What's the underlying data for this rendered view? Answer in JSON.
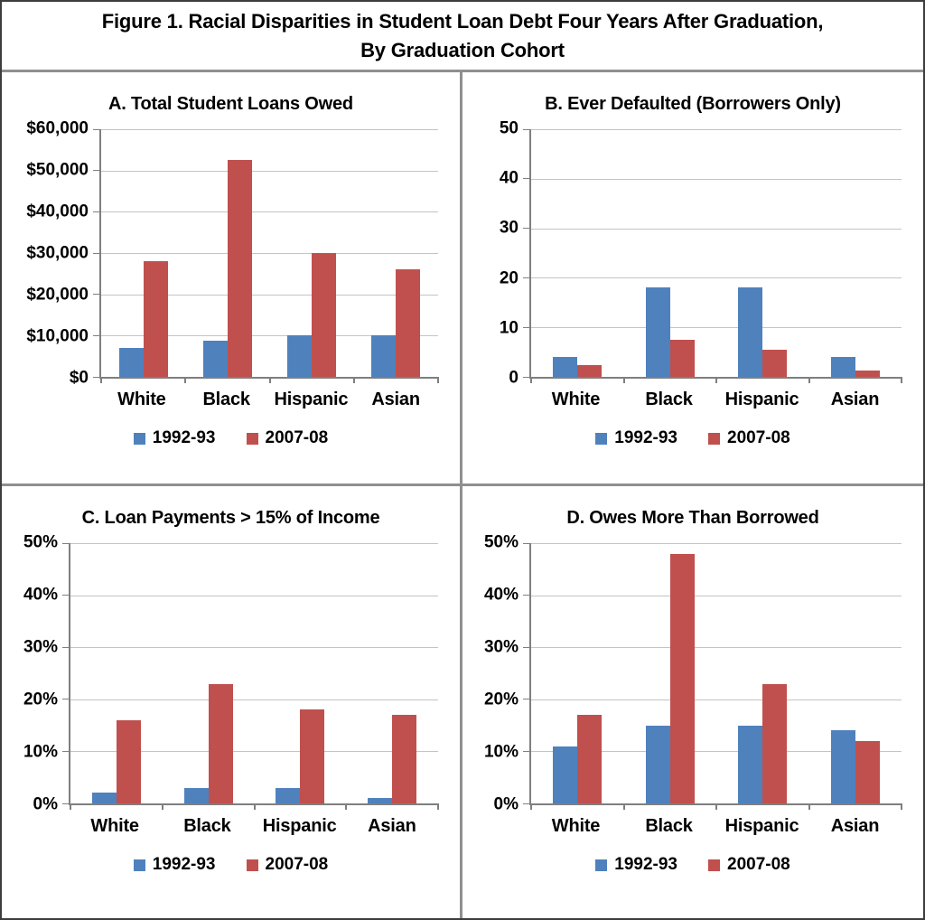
{
  "header": {
    "title_line1": "Figure 1. Racial Disparities in Student Loan Debt Four Years After Graduation,",
    "title_line2": "By Graduation Cohort"
  },
  "legend": {
    "items": [
      {
        "label": "1992-93",
        "color": "#4F81BD"
      },
      {
        "label": "2007-08",
        "color": "#C0504D"
      }
    ]
  },
  "colors": {
    "bar_1992_93": "#4F81BD",
    "bar_2007_08": "#C0504D",
    "gridline": "#C4C4C4",
    "axis": "#7F7F7F",
    "panel_divider": "#8F8F8F",
    "outer_border": "#3D3D3D",
    "text": "#000000"
  },
  "chart_data": [
    {
      "id": "A",
      "type": "bar",
      "title": "A. Total Student Loans Owed",
      "categories": [
        "White",
        "Black",
        "Hispanic",
        "Asian"
      ],
      "series": [
        {
          "name": "1992-93",
          "color": "#4F81BD",
          "values": [
            7000,
            8700,
            10000,
            10000
          ]
        },
        {
          "name": "2007-08",
          "color": "#C0504D",
          "values": [
            28000,
            52500,
            30000,
            26000
          ]
        }
      ],
      "ylim": [
        0,
        60000
      ],
      "grid": true,
      "legend_position": "bottom",
      "yticks": [
        {
          "value": 60000,
          "label": "$60,000"
        },
        {
          "value": 50000,
          "label": "$50,000"
        },
        {
          "value": 40000,
          "label": "$40,000"
        },
        {
          "value": 30000,
          "label": "$30,000"
        },
        {
          "value": 20000,
          "label": "$20,000"
        },
        {
          "value": 10000,
          "label": "$10,000"
        },
        {
          "value": 0,
          "label": "$0"
        }
      ]
    },
    {
      "id": "B",
      "type": "bar",
      "title": "B. Ever Defaulted (Borrowers Only)",
      "categories": [
        "White",
        "Black",
        "Hispanic",
        "Asian"
      ],
      "series": [
        {
          "name": "1992-93",
          "color": "#4F81BD",
          "values": [
            4,
            18,
            18,
            4
          ]
        },
        {
          "name": "2007-08",
          "color": "#C0504D",
          "values": [
            2.3,
            7.5,
            5.5,
            1.2
          ]
        }
      ],
      "ylim": [
        0,
        50
      ],
      "grid": true,
      "legend_position": "bottom",
      "yticks": [
        {
          "value": 50,
          "label": "50"
        },
        {
          "value": 40,
          "label": "40"
        },
        {
          "value": 30,
          "label": "30"
        },
        {
          "value": 20,
          "label": "20"
        },
        {
          "value": 10,
          "label": "10"
        },
        {
          "value": 0,
          "label": "0"
        }
      ]
    },
    {
      "id": "C",
      "type": "bar",
      "title": "C. Loan Payments > 15% of Income",
      "categories": [
        "White",
        "Black",
        "Hispanic",
        "Asian"
      ],
      "series": [
        {
          "name": "1992-93",
          "color": "#4F81BD",
          "values": [
            2,
            3,
            3,
            1
          ]
        },
        {
          "name": "2007-08",
          "color": "#C0504D",
          "values": [
            16,
            23,
            18,
            17
          ]
        }
      ],
      "ylim": [
        0,
        50
      ],
      "grid": true,
      "legend_position": "bottom",
      "yticks": [
        {
          "value": 50,
          "label": "50%"
        },
        {
          "value": 40,
          "label": "40%"
        },
        {
          "value": 30,
          "label": "30%"
        },
        {
          "value": 20,
          "label": "20%"
        },
        {
          "value": 10,
          "label": "10%"
        },
        {
          "value": 0,
          "label": "0%"
        }
      ]
    },
    {
      "id": "D",
      "type": "bar",
      "title": "D. Owes More Than Borrowed",
      "categories": [
        "White",
        "Black",
        "Hispanic",
        "Asian"
      ],
      "series": [
        {
          "name": "1992-93",
          "color": "#4F81BD",
          "values": [
            11,
            15,
            15,
            14
          ]
        },
        {
          "name": "2007-08",
          "color": "#C0504D",
          "values": [
            17,
            48,
            23,
            12
          ]
        }
      ],
      "ylim": [
        0,
        50
      ],
      "grid": true,
      "legend_position": "bottom",
      "yticks": [
        {
          "value": 50,
          "label": "50%"
        },
        {
          "value": 40,
          "label": "40%"
        },
        {
          "value": 30,
          "label": "30%"
        },
        {
          "value": 20,
          "label": "20%"
        },
        {
          "value": 10,
          "label": "10%"
        },
        {
          "value": 0,
          "label": "0%"
        }
      ]
    }
  ]
}
